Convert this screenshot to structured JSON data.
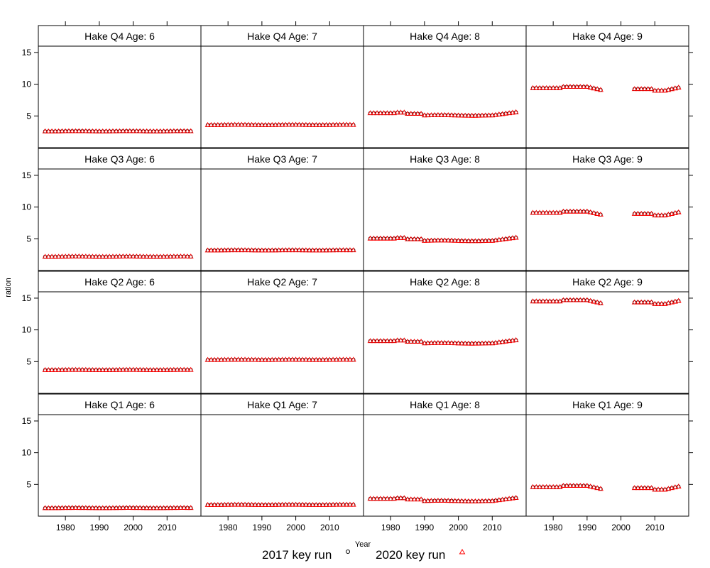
{
  "chart_data": {
    "type": "scatter",
    "layout": "lattice 4x4",
    "xlabel": "Year",
    "ylabel": "ration",
    "xlim": [
      1972,
      2020
    ],
    "ylim": [
      0,
      16
    ],
    "x_ticks": [
      1980,
      1990,
      2000,
      2010
    ],
    "y_ticks": [
      5,
      10,
      15
    ],
    "legend": {
      "placement": "bottom",
      "entries": [
        {
          "label": "2017 key run",
          "symbol": "circle",
          "color": "#000000"
        },
        {
          "label": "2020 key run",
          "symbol": "triangle",
          "color": "#ff0000"
        }
      ]
    },
    "panels": [
      {
        "title": "Hake Q4 Age: 6",
        "row": 0,
        "col": 0,
        "base": 2.6,
        "profile": "flat",
        "gap": false
      },
      {
        "title": "Hake Q4 Age: 7",
        "row": 0,
        "col": 1,
        "base": 3.6,
        "profile": "flat",
        "gap": false
      },
      {
        "title": "Hake Q4 Age: 8",
        "row": 0,
        "col": 2,
        "base": 5.4,
        "profile": "age8",
        "gap": false
      },
      {
        "title": "Hake Q4 Age: 9",
        "row": 0,
        "col": 3,
        "base": 9.4,
        "profile": "age9",
        "gap": true
      },
      {
        "title": "Hake Q3 Age: 6",
        "row": 1,
        "col": 0,
        "base": 2.2,
        "profile": "flat",
        "gap": false
      },
      {
        "title": "Hake Q3 Age: 7",
        "row": 1,
        "col": 1,
        "base": 3.2,
        "profile": "flat",
        "gap": false
      },
      {
        "title": "Hake Q3 Age: 8",
        "row": 1,
        "col": 2,
        "base": 5.0,
        "profile": "age8",
        "gap": false
      },
      {
        "title": "Hake Q3 Age: 9",
        "row": 1,
        "col": 3,
        "base": 9.1,
        "profile": "age9",
        "gap": true
      },
      {
        "title": "Hake Q2 Age: 6",
        "row": 2,
        "col": 0,
        "base": 3.7,
        "profile": "flat",
        "gap": false
      },
      {
        "title": "Hake Q2 Age: 7",
        "row": 2,
        "col": 1,
        "base": 5.3,
        "profile": "flat",
        "gap": false
      },
      {
        "title": "Hake Q2 Age: 8",
        "row": 2,
        "col": 2,
        "base": 8.2,
        "profile": "age8",
        "gap": false
      },
      {
        "title": "Hake Q2 Age: 9",
        "row": 2,
        "col": 3,
        "base": 14.5,
        "profile": "age9",
        "gap": true
      },
      {
        "title": "Hake Q1 Age: 6",
        "row": 3,
        "col": 0,
        "base": 1.3,
        "profile": "flat",
        "gap": false
      },
      {
        "title": "Hake Q1 Age: 7",
        "row": 3,
        "col": 1,
        "base": 1.8,
        "profile": "flat",
        "gap": false
      },
      {
        "title": "Hake Q1 Age: 8",
        "row": 3,
        "col": 2,
        "base": 2.7,
        "profile": "age8",
        "gap": false
      },
      {
        "title": "Hake Q1 Age: 9",
        "row": 3,
        "col": 3,
        "base": 4.6,
        "profile": "age9",
        "gap": true
      }
    ]
  }
}
